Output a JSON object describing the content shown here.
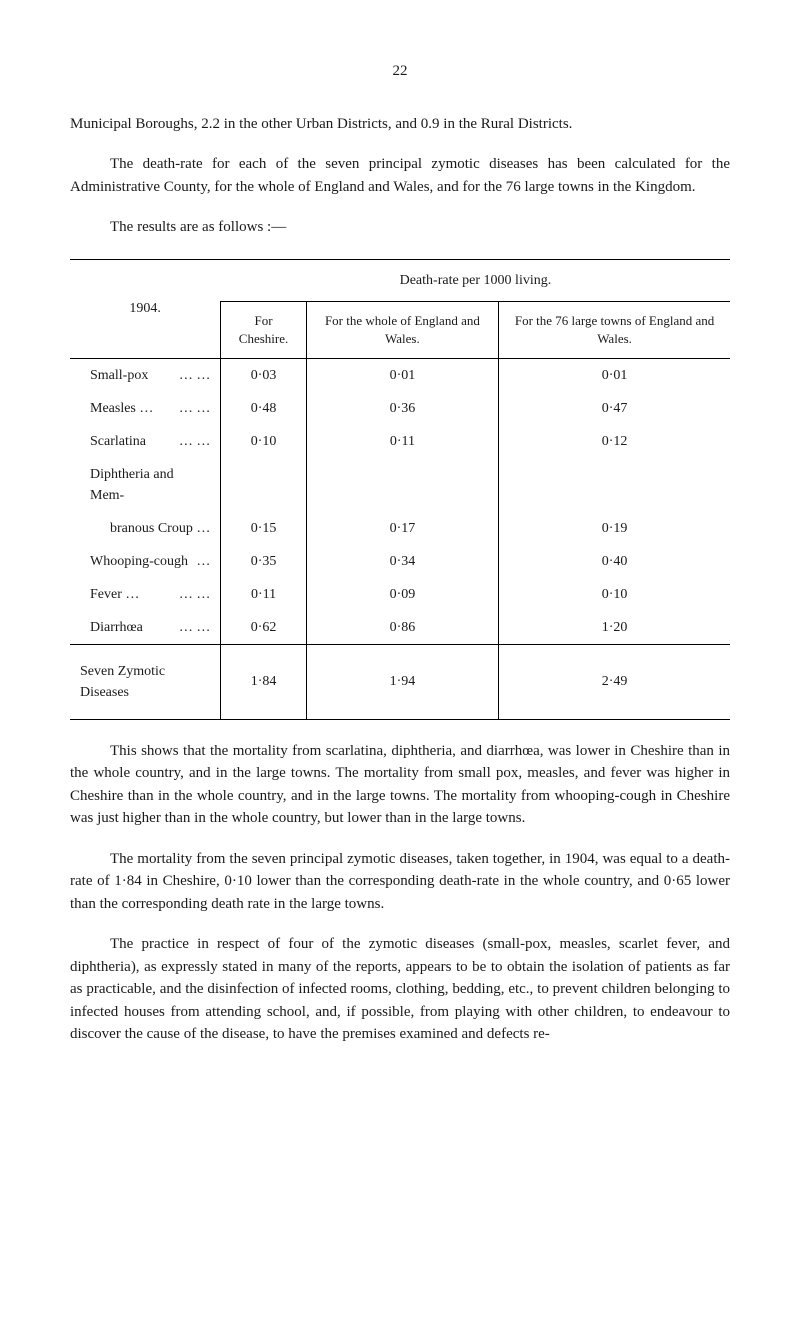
{
  "page_number": "22",
  "para1": "Municipal Boroughs, 2.2 in the other Urban Districts, and 0.9 in the Rural Districts.",
  "para2": "The death-rate for each of the seven principal zymotic diseases has been calculated for the Administrative County, for the whole of England and Wales, and for the 76 large towns in the Kingdom.",
  "para3": "The results are as follows :—",
  "table": {
    "year": "1904.",
    "header_main": "Death-rate per 1000 living.",
    "col1": "For Cheshire.",
    "col2": "For the whole of England and Wales.",
    "col3": "For the 76 large towns of England and Wales.",
    "rows": [
      {
        "label": "Small-pox",
        "suffix": "…   …",
        "v1": "0·03",
        "v2": "0·01",
        "v3": "0·01"
      },
      {
        "label": "Measles …",
        "suffix": "…   …",
        "v1": "0·48",
        "v2": "0·36",
        "v3": "0·47"
      },
      {
        "label": "Scarlatina",
        "suffix": "…   …",
        "v1": "0·10",
        "v2": "0·11",
        "v3": "0·12"
      },
      {
        "label": "Diphtheria and Mem-",
        "suffix": "",
        "v1": "",
        "v2": "",
        "v3": ""
      },
      {
        "label": "branous Croup",
        "suffix": "…",
        "v1": "0·15",
        "v2": "0·17",
        "v3": "0·19",
        "sub": true
      },
      {
        "label": "Whooping-cough",
        "suffix": "…",
        "v1": "0·35",
        "v2": "0·34",
        "v3": "0·40"
      },
      {
        "label": "Fever   …",
        "suffix": "…   …",
        "v1": "0·11",
        "v2": "0·09",
        "v3": "0·10"
      },
      {
        "label": "Diarrhœa",
        "suffix": "…   …",
        "v1": "0·62",
        "v2": "0·86",
        "v3": "1·20"
      }
    ],
    "total": {
      "label": "Seven Zymotic Diseases",
      "v1": "1·84",
      "v2": "1·94",
      "v3": "2·49"
    }
  },
  "para4": "This shows that the mortality from scarlatina, diphtheria, and diarrhœa, was lower in Cheshire than in the whole country, and in the large towns. The mortality from small pox, measles, and fever was higher in Cheshire than in the whole country, and in the large towns. The mortality from whooping-cough in Cheshire was just higher than in the whole country, but lower than in the large towns.",
  "para5": "The mortality from the seven principal zymotic diseases, taken together, in 1904, was equal to a death-rate of 1·84 in Cheshire, 0·10 lower than the corresponding death-rate in the whole country, and 0·65 lower than the corresponding death rate in the large towns.",
  "para6": "The practice in respect of four of the zymotic diseases (small-pox, measles, scarlet fever, and diphtheria), as expressly stated in many of the reports, appears to be to obtain the isolation of patients as far as practicable, and the disinfection of infected rooms, clothing, bedding, etc., to prevent children belonging to infected houses from attending school, and, if possible, from playing with other children, to endeavour to discover the cause of the disease, to have the premises examined and defects re-"
}
